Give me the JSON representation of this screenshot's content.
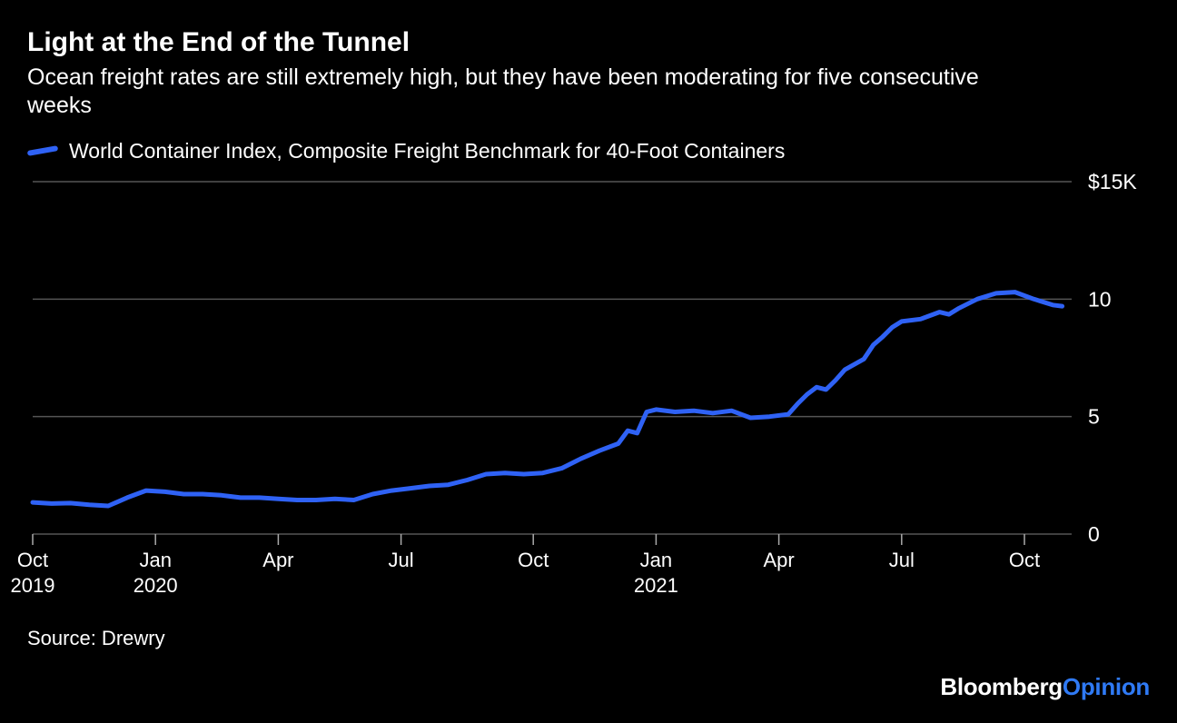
{
  "chart": {
    "type": "line",
    "title": "Light at the End of the Tunnel",
    "subtitle": "Ocean freight rates are still extremely high, but they have been moderating for five consecutive weeks",
    "legend_label": "World Container Index, Composite Freight Benchmark for 40-Foot Containers",
    "source_label": "Source: Drewry",
    "background_color": "#000000",
    "text_color": "#ffffff",
    "grid_color": "#555555",
    "line_color": "#2f62f5",
    "line_width": 5,
    "ylim": [
      0,
      15
    ],
    "yticks": [
      {
        "value": 0,
        "label": "0"
      },
      {
        "value": 5,
        "label": "5"
      },
      {
        "value": 10,
        "label": "10"
      },
      {
        "value": 15,
        "label": "$15K"
      }
    ],
    "xlim": [
      0,
      110
    ],
    "xticks": [
      {
        "value": 0,
        "label1": "Oct",
        "label2": "2019"
      },
      {
        "value": 13,
        "label1": "Jan",
        "label2": "2020"
      },
      {
        "value": 26,
        "label1": "Apr",
        "label2": ""
      },
      {
        "value": 39,
        "label1": "Jul",
        "label2": ""
      },
      {
        "value": 53,
        "label1": "Oct",
        "label2": ""
      },
      {
        "value": 66,
        "label1": "Jan",
        "label2": "2021"
      },
      {
        "value": 79,
        "label1": "Apr",
        "label2": ""
      },
      {
        "value": 92,
        "label1": "Jul",
        "label2": ""
      },
      {
        "value": 105,
        "label1": "Oct",
        "label2": ""
      }
    ],
    "series": [
      {
        "x": 0,
        "y": 1.35
      },
      {
        "x": 2,
        "y": 1.3
      },
      {
        "x": 4,
        "y": 1.32
      },
      {
        "x": 6,
        "y": 1.25
      },
      {
        "x": 8,
        "y": 1.2
      },
      {
        "x": 10,
        "y": 1.55
      },
      {
        "x": 12,
        "y": 1.85
      },
      {
        "x": 14,
        "y": 1.8
      },
      {
        "x": 16,
        "y": 1.7
      },
      {
        "x": 18,
        "y": 1.7
      },
      {
        "x": 20,
        "y": 1.65
      },
      {
        "x": 22,
        "y": 1.55
      },
      {
        "x": 24,
        "y": 1.55
      },
      {
        "x": 26,
        "y": 1.5
      },
      {
        "x": 28,
        "y": 1.45
      },
      {
        "x": 30,
        "y": 1.45
      },
      {
        "x": 32,
        "y": 1.5
      },
      {
        "x": 34,
        "y": 1.45
      },
      {
        "x": 36,
        "y": 1.7
      },
      {
        "x": 38,
        "y": 1.85
      },
      {
        "x": 40,
        "y": 1.95
      },
      {
        "x": 42,
        "y": 2.05
      },
      {
        "x": 44,
        "y": 2.1
      },
      {
        "x": 46,
        "y": 2.3
      },
      {
        "x": 48,
        "y": 2.55
      },
      {
        "x": 50,
        "y": 2.6
      },
      {
        "x": 52,
        "y": 2.55
      },
      {
        "x": 54,
        "y": 2.6
      },
      {
        "x": 56,
        "y": 2.8
      },
      {
        "x": 58,
        "y": 3.2
      },
      {
        "x": 60,
        "y": 3.55
      },
      {
        "x": 62,
        "y": 3.85
      },
      {
        "x": 63,
        "y": 4.4
      },
      {
        "x": 64,
        "y": 4.3
      },
      {
        "x": 65,
        "y": 5.2
      },
      {
        "x": 66,
        "y": 5.3
      },
      {
        "x": 68,
        "y": 5.2
      },
      {
        "x": 70,
        "y": 5.25
      },
      {
        "x": 72,
        "y": 5.15
      },
      {
        "x": 74,
        "y": 5.25
      },
      {
        "x": 76,
        "y": 4.95
      },
      {
        "x": 78,
        "y": 5.0
      },
      {
        "x": 80,
        "y": 5.1
      },
      {
        "x": 81,
        "y": 5.55
      },
      {
        "x": 82,
        "y": 5.95
      },
      {
        "x": 83,
        "y": 6.25
      },
      {
        "x": 84,
        "y": 6.15
      },
      {
        "x": 85,
        "y": 6.55
      },
      {
        "x": 86,
        "y": 7.0
      },
      {
        "x": 88,
        "y": 7.45
      },
      {
        "x": 89,
        "y": 8.05
      },
      {
        "x": 90,
        "y": 8.4
      },
      {
        "x": 91,
        "y": 8.8
      },
      {
        "x": 92,
        "y": 9.05
      },
      {
        "x": 94,
        "y": 9.15
      },
      {
        "x": 96,
        "y": 9.45
      },
      {
        "x": 97,
        "y": 9.35
      },
      {
        "x": 98,
        "y": 9.6
      },
      {
        "x": 100,
        "y": 10.0
      },
      {
        "x": 102,
        "y": 10.25
      },
      {
        "x": 104,
        "y": 10.3
      },
      {
        "x": 106,
        "y": 10.0
      },
      {
        "x": 108,
        "y": 9.75
      },
      {
        "x": 109,
        "y": 9.7
      }
    ],
    "brand": {
      "part1": "Bloomberg",
      "part2": "Opinion",
      "color1": "#ffffff",
      "color2": "#2f7af5"
    },
    "title_fontsize": 30,
    "subtitle_fontsize": 25,
    "axis_fontsize": 22
  }
}
